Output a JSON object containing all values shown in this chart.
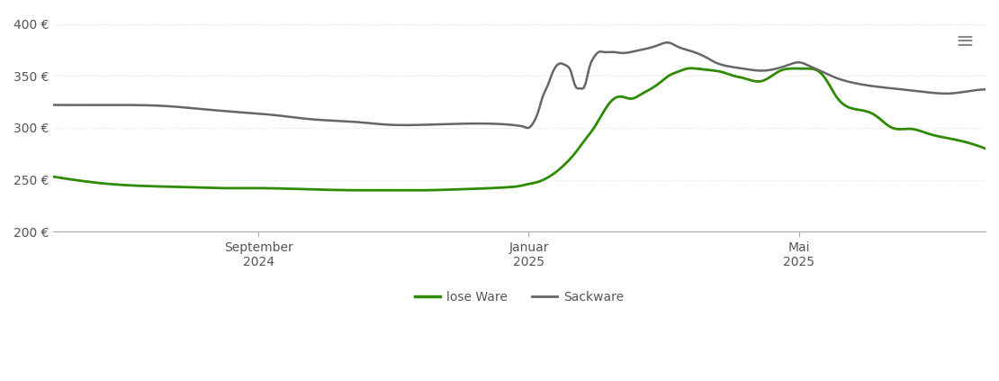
{
  "ylim": [
    200,
    410
  ],
  "yticks": [
    200,
    250,
    300,
    350,
    400
  ],
  "ytick_labels": [
    "200 €",
    "250 €",
    "300 €",
    "350 €",
    "400 €"
  ],
  "xtick_labels": [
    "September\n2024",
    "Januar\n2025",
    "Mai\n2025"
  ],
  "xtick_positions": [
    0.22,
    0.51,
    0.8
  ],
  "background_color": "#ffffff",
  "grid_color": "#dddddd",
  "line_lose_ware_color": "#2e8b00",
  "line_sackware_color": "#666666",
  "legend_labels": [
    "lose Ware",
    "Sackware"
  ],
  "lose_ware_x": [
    0.0,
    0.03,
    0.06,
    0.1,
    0.14,
    0.18,
    0.22,
    0.27,
    0.32,
    0.36,
    0.4,
    0.44,
    0.47,
    0.49,
    0.5,
    0.51,
    0.52,
    0.53,
    0.54,
    0.55,
    0.56,
    0.57,
    0.58,
    0.59,
    0.6,
    0.61,
    0.62,
    0.63,
    0.64,
    0.65,
    0.66,
    0.67,
    0.68,
    0.69,
    0.7,
    0.71,
    0.72,
    0.73,
    0.74,
    0.76,
    0.78,
    0.79,
    0.8,
    0.81,
    0.82,
    0.83,
    0.84,
    0.86,
    0.88,
    0.9,
    0.92,
    0.94,
    0.96,
    0.98,
    1.0
  ],
  "lose_ware_y": [
    253,
    249,
    246,
    244,
    243,
    242,
    242,
    241,
    240,
    240,
    240,
    241,
    242,
    243,
    244,
    246,
    248,
    252,
    258,
    266,
    276,
    288,
    300,
    315,
    327,
    330,
    328,
    332,
    337,
    343,
    350,
    354,
    357,
    357,
    356,
    355,
    353,
    350,
    348,
    345,
    355,
    357,
    357,
    357,
    355,
    345,
    330,
    318,
    313,
    300,
    299,
    294,
    290,
    286,
    280
  ],
  "sackware_x": [
    0.0,
    0.04,
    0.08,
    0.12,
    0.16,
    0.2,
    0.24,
    0.28,
    0.32,
    0.36,
    0.4,
    0.44,
    0.47,
    0.49,
    0.5,
    0.505,
    0.51,
    0.515,
    0.52,
    0.525,
    0.53,
    0.535,
    0.54,
    0.545,
    0.55,
    0.555,
    0.56,
    0.565,
    0.57,
    0.575,
    0.58,
    0.585,
    0.59,
    0.6,
    0.61,
    0.62,
    0.63,
    0.64,
    0.65,
    0.66,
    0.67,
    0.68,
    0.69,
    0.7,
    0.71,
    0.72,
    0.74,
    0.76,
    0.78,
    0.79,
    0.8,
    0.81,
    0.82,
    0.84,
    0.86,
    0.88,
    0.9,
    0.92,
    0.94,
    0.96,
    0.98,
    1.0
  ],
  "sackware_y": [
    322,
    322,
    322,
    321,
    318,
    315,
    312,
    308,
    306,
    303,
    303,
    304,
    304,
    303,
    302,
    301,
    300,
    305,
    315,
    330,
    340,
    352,
    360,
    362,
    360,
    355,
    340,
    338,
    340,
    358,
    368,
    373,
    373,
    373,
    372,
    373,
    375,
    377,
    380,
    382,
    378,
    375,
    372,
    368,
    363,
    360,
    357,
    355,
    358,
    361,
    363,
    360,
    356,
    348,
    343,
    340,
    338,
    336,
    334,
    333,
    335,
    337
  ]
}
